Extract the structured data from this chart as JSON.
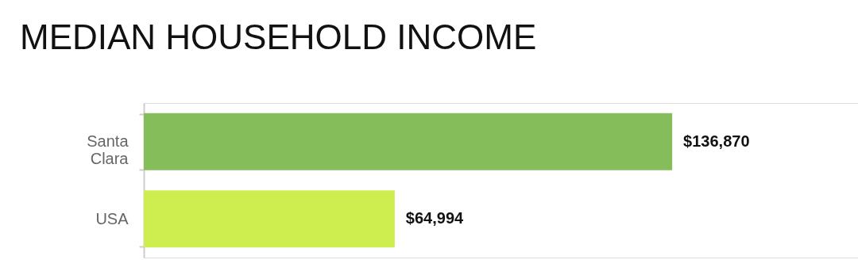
{
  "chart_data": {
    "type": "bar",
    "orientation": "horizontal",
    "title": "MEDIAN HOUSEHOLD INCOME",
    "categories": [
      "Santa Clara",
      "USA"
    ],
    "values": [
      136870,
      64994
    ],
    "colors": [
      "#84bd5a",
      "#cdee4e"
    ],
    "value_labels": [
      "$136,870",
      "$64,994"
    ],
    "xlim": [
      0,
      185000
    ],
    "tick_labels": "y",
    "grid": false,
    "legend": false
  }
}
